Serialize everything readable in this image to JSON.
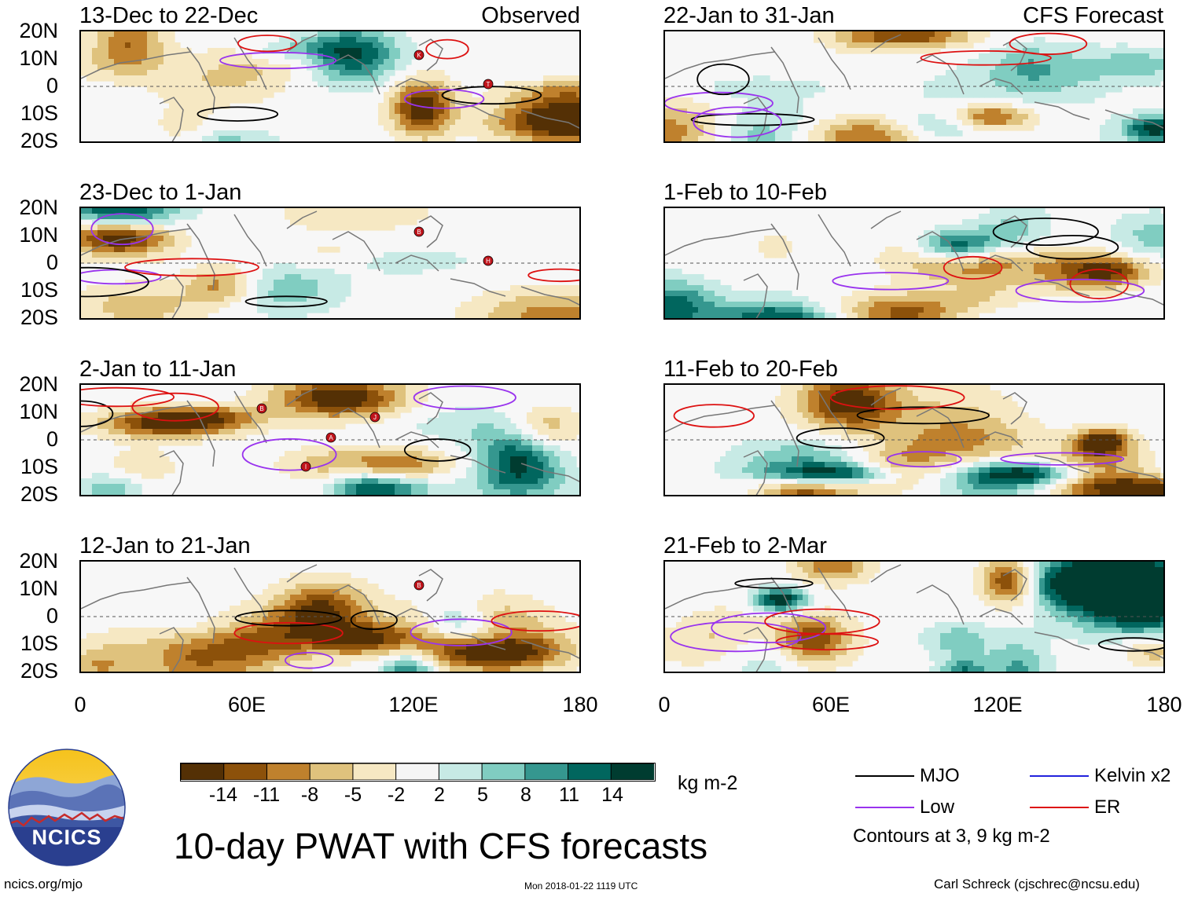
{
  "observed_label": "Observed",
  "forecast_label": "CFS Forecast",
  "left_panels": [
    {
      "title": "13-Dec to 22-Dec"
    },
    {
      "title": "23-Dec to 1-Jan"
    },
    {
      "title": "2-Jan to 11-Jan"
    },
    {
      "title": "12-Jan to 21-Jan"
    }
  ],
  "right_panels": [
    {
      "title": "22-Jan to 31-Jan"
    },
    {
      "title": "1-Feb to 10-Feb"
    },
    {
      "title": "11-Feb to 20-Feb"
    },
    {
      "title": "21-Feb to 2-Mar"
    }
  ],
  "y_ticks": [
    "20N",
    "10N",
    "0",
    "10S",
    "20S"
  ],
  "x_ticks": [
    "0",
    "60E",
    "120E",
    "180"
  ],
  "colorbar": {
    "colors": [
      "#543005",
      "#8c510a",
      "#bf812d",
      "#dfc27d",
      "#f6e8c3",
      "#f5f5f5",
      "#c7eae5",
      "#80cdc1",
      "#35978f",
      "#01665e",
      "#003c30"
    ],
    "ticks": [
      "-14",
      "-11",
      "-8",
      "-5",
      "-2",
      "2",
      "5",
      "8",
      "11",
      "14"
    ],
    "units": "kg m-2"
  },
  "legend": {
    "items": [
      {
        "label": "MJO",
        "color": "#000000"
      },
      {
        "label": "Kelvin x2",
        "color": "#2222dd"
      },
      {
        "label": "Low",
        "color": "#9933ee"
      },
      {
        "label": "ER",
        "color": "#dd1111"
      }
    ],
    "contours_note": "Contours at 3, 9 kg m-2"
  },
  "main_title": "10-day PWAT with CFS forecasts",
  "logo_text": "NCICS",
  "website": "ncics.org/mjo",
  "timestamp": "Mon 2018-01-22 1119 UTC",
  "author": "Carl Schreck (cjschrec@ncsu.edu)",
  "storm_markers": [
    {
      "panel": 0,
      "letter": "K"
    },
    {
      "panel": 0,
      "letter": "T"
    },
    {
      "panel": 1,
      "letter": "B"
    },
    {
      "panel": 1,
      "letter": "H"
    },
    {
      "panel": 2,
      "letter": "B"
    },
    {
      "panel": 2,
      "letter": "A"
    },
    {
      "panel": 2,
      "letter": "I"
    },
    {
      "panel": 2,
      "letter": "J"
    },
    {
      "panel": 3,
      "letter": "B"
    }
  ]
}
